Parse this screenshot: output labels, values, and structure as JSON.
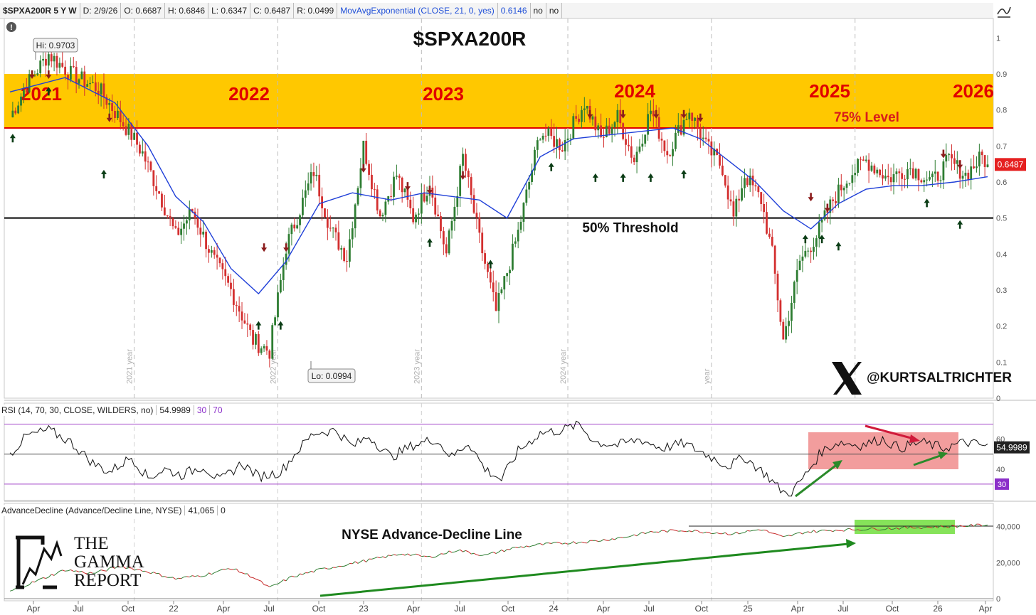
{
  "header": {
    "symbol_label": "$SPXA200R 5 Y W",
    "date": "D: 2/9/26",
    "open": "O: 0.6687",
    "high": "H: 0.6846",
    "low": "L: 0.6347",
    "close": "C: 0.6487",
    "range": "R: 0.0499",
    "study": "MovAvgExponential (CLOSE, 21, 0, yes)",
    "study_value": "0.6146",
    "flag1": "no",
    "flag2": "no"
  },
  "colors": {
    "up": "#2e7d32",
    "down": "#d32f2f",
    "band": "#ffc800",
    "ema": "#1f3fd8",
    "rsi_box": "#f08c8c",
    "ad_box": "#86e35a",
    "threshold75": "#e00000"
  },
  "chart_data": [
    {
      "type": "candlestick",
      "title": "$SPXA200R",
      "ylim": [
        0,
        1.05
      ],
      "yticks": [
        "1",
        "0.9",
        "0.8",
        "0.7",
        "0.6",
        "0.5",
        "0.4",
        "0.3",
        "0.2",
        "0.1",
        "0"
      ],
      "xticks": [
        "Apr",
        "Jul",
        "Oct",
        "22",
        "Apr",
        "Jul",
        "Oct",
        "23",
        "Apr",
        "Jul",
        "Oct",
        "24",
        "Apr",
        "Jul",
        "Oct",
        "25",
        "Apr",
        "Jul",
        "Oct",
        "26",
        "Apr"
      ],
      "year_labels": [
        "2021",
        "2022",
        "2023",
        "2024",
        "2025",
        "2026"
      ],
      "year_separator_labels": [
        "2021 year",
        "2022 year",
        "2023 year",
        "2024 year",
        "year"
      ],
      "band": {
        "from": 0.75,
        "to": 0.9,
        "label": "75% Level"
      },
      "threshold": {
        "value": 0.5,
        "label": "50% Threshold"
      },
      "hi_label": "Hi: 0.9703",
      "lo_label": "Lo: 0.0994",
      "last_value": "0.6487",
      "watermark": "@KURTSALTRICHTER",
      "x_date_range": [
        "2021-01-04",
        "2026-02-09"
      ],
      "series": [
        {
          "name": "MovAvgExponential (CLOSE, 21, 0, yes)",
          "closes": [
            [
              0,
              0.78
            ],
            [
              6,
              0.87
            ],
            [
              14,
              0.955
            ],
            [
              22,
              0.9
            ],
            [
              32,
              0.86
            ],
            [
              44,
              0.73
            ],
            [
              48,
              0.68
            ],
            [
              54,
              0.57
            ],
            [
              60,
              0.45
            ],
            [
              66,
              0.52
            ],
            [
              74,
              0.38
            ],
            [
              80,
              0.3
            ],
            [
              88,
              0.16
            ],
            [
              94,
              0.13
            ],
            [
              100,
              0.42
            ],
            [
              110,
              0.63
            ],
            [
              116,
              0.47
            ],
            [
              122,
              0.39
            ],
            [
              128,
              0.7
            ],
            [
              134,
              0.51
            ],
            [
              140,
              0.62
            ],
            [
              146,
              0.5
            ],
            [
              152,
              0.6
            ],
            [
              158,
              0.4
            ],
            [
              164,
              0.67
            ],
            [
              170,
              0.44
            ],
            [
              176,
              0.24
            ],
            [
              184,
              0.46
            ],
            [
              192,
              0.74
            ],
            [
              200,
              0.7
            ],
            [
              208,
              0.82
            ],
            [
              214,
              0.72
            ],
            [
              220,
              0.78
            ],
            [
              226,
              0.66
            ],
            [
              232,
              0.8
            ],
            [
              238,
              0.68
            ],
            [
              246,
              0.8
            ],
            [
              252,
              0.7
            ],
            [
              258,
              0.64
            ],
            [
              262,
              0.5
            ],
            [
              266,
              0.62
            ],
            [
              272,
              0.55
            ],
            [
              276,
              0.4
            ],
            [
              280,
              0.16
            ],
            [
              286,
              0.38
            ],
            [
              292,
              0.45
            ],
            [
              298,
              0.55
            ],
            [
              304,
              0.62
            ],
            [
              310,
              0.66
            ],
            [
              318,
              0.61
            ],
            [
              326,
              0.64
            ],
            [
              334,
              0.6
            ],
            [
              340,
              0.66
            ],
            [
              346,
              0.62
            ],
            [
              352,
              0.67
            ],
            [
              354,
              0.6487
            ]
          ],
          "ema": [
            [
              0,
              0.85
            ],
            [
              20,
              0.89
            ],
            [
              38,
              0.82
            ],
            [
              50,
              0.7
            ],
            [
              60,
              0.56
            ],
            [
              70,
              0.49
            ],
            [
              80,
              0.36
            ],
            [
              90,
              0.29
            ],
            [
              100,
              0.38
            ],
            [
              112,
              0.54
            ],
            [
              124,
              0.57
            ],
            [
              138,
              0.55
            ],
            [
              150,
              0.57
            ],
            [
              160,
              0.56
            ],
            [
              170,
              0.55
            ],
            [
              180,
              0.5
            ],
            [
              192,
              0.67
            ],
            [
              204,
              0.72
            ],
            [
              216,
              0.73
            ],
            [
              228,
              0.74
            ],
            [
              240,
              0.75
            ],
            [
              250,
              0.72
            ],
            [
              260,
              0.66
            ],
            [
              270,
              0.6
            ],
            [
              280,
              0.52
            ],
            [
              290,
              0.47
            ],
            [
              300,
              0.54
            ],
            [
              310,
              0.58
            ],
            [
              320,
              0.59
            ],
            [
              330,
              0.59
            ],
            [
              342,
              0.6
            ],
            [
              354,
              0.6146
            ]
          ]
        }
      ],
      "up_arrows": [
        [
          1,
          0.72
        ],
        [
          14,
          0.85
        ],
        [
          34,
          0.62
        ],
        [
          90,
          0.2
        ],
        [
          98,
          0.2
        ],
        [
          152,
          0.43
        ],
        [
          174,
          0.37
        ],
        [
          196,
          0.64
        ],
        [
          212,
          0.61
        ],
        [
          222,
          0.61
        ],
        [
          232,
          0.61
        ],
        [
          244,
          0.62
        ],
        [
          288,
          0.44
        ],
        [
          294,
          0.44
        ],
        [
          300,
          0.42
        ],
        [
          332,
          0.54
        ],
        [
          344,
          0.48
        ]
      ],
      "down_arrows": [
        [
          8,
          0.9
        ],
        [
          14,
          0.9
        ],
        [
          36,
          0.78
        ],
        [
          92,
          0.42
        ],
        [
          100,
          0.42
        ],
        [
          128,
          0.64
        ],
        [
          144,
          0.59
        ],
        [
          152,
          0.58
        ],
        [
          164,
          0.62
        ],
        [
          210,
          0.79
        ],
        [
          222,
          0.79
        ],
        [
          234,
          0.79
        ],
        [
          244,
          0.79
        ],
        [
          250,
          0.78
        ],
        [
          290,
          0.56
        ],
        [
          296,
          0.53
        ],
        [
          338,
          0.68
        ],
        [
          344,
          0.65
        ]
      ]
    },
    {
      "type": "line",
      "title": "RSI (14, 70, 30, CLOSE, WILDERS, no)",
      "title_value": "54.9989",
      "level_labels": [
        "30",
        "70"
      ],
      "ylim": [
        20,
        75
      ],
      "yticks": [
        "60",
        "40"
      ],
      "levels": [
        30,
        50,
        70
      ],
      "last_value": "54.9989",
      "level30_label": "30",
      "points": [
        [
          0,
          50
        ],
        [
          6,
          62
        ],
        [
          14,
          66
        ],
        [
          22,
          58
        ],
        [
          30,
          44
        ],
        [
          36,
          38
        ],
        [
          44,
          48
        ],
        [
          50,
          34
        ],
        [
          56,
          40
        ],
        [
          62,
          36
        ],
        [
          70,
          42
        ],
        [
          76,
          32
        ],
        [
          84,
          44
        ],
        [
          90,
          35
        ],
        [
          98,
          38
        ],
        [
          104,
          52
        ],
        [
          110,
          64
        ],
        [
          118,
          66
        ],
        [
          124,
          55
        ],
        [
          130,
          62
        ],
        [
          138,
          48
        ],
        [
          146,
          56
        ],
        [
          154,
          60
        ],
        [
          160,
          48
        ],
        [
          166,
          58
        ],
        [
          172,
          40
        ],
        [
          178,
          33
        ],
        [
          184,
          52
        ],
        [
          192,
          64
        ],
        [
          200,
          66
        ],
        [
          206,
          70
        ],
        [
          212,
          58
        ],
        [
          220,
          56
        ],
        [
          228,
          60
        ],
        [
          236,
          54
        ],
        [
          244,
          57
        ],
        [
          252,
          50
        ],
        [
          260,
          42
        ],
        [
          266,
          48
        ],
        [
          274,
          36
        ],
        [
          278,
          28
        ],
        [
          282,
          22
        ],
        [
          288,
          36
        ],
        [
          294,
          52
        ],
        [
          300,
          58
        ],
        [
          308,
          56
        ],
        [
          316,
          60
        ],
        [
          322,
          54
        ],
        [
          330,
          58
        ],
        [
          338,
          54
        ],
        [
          346,
          58
        ],
        [
          354,
          55
        ]
      ]
    },
    {
      "type": "line",
      "title": "AdvanceDecline (Advance/Decline Line, NYSE)",
      "title_value": "41,065",
      "title_value2": "0",
      "ylim": [
        0,
        45000
      ],
      "yticks": [
        "40,000",
        "20,000",
        "0"
      ],
      "annotation": "NYSE Advance-Decline Line",
      "points": [
        [
          0,
          4000
        ],
        [
          10,
          10000
        ],
        [
          20,
          16000
        ],
        [
          30,
          14000
        ],
        [
          40,
          18000
        ],
        [
          50,
          15000
        ],
        [
          60,
          11000
        ],
        [
          70,
          13000
        ],
        [
          80,
          17000
        ],
        [
          88,
          12000
        ],
        [
          94,
          6000
        ],
        [
          102,
          12000
        ],
        [
          112,
          16000
        ],
        [
          122,
          19000
        ],
        [
          132,
          22000
        ],
        [
          142,
          25000
        ],
        [
          152,
          23000
        ],
        [
          162,
          27000
        ],
        [
          172,
          24000
        ],
        [
          182,
          28000
        ],
        [
          192,
          30000
        ],
        [
          202,
          31000
        ],
        [
          212,
          32000
        ],
        [
          222,
          34000
        ],
        [
          232,
          37000
        ],
        [
          244,
          38000
        ],
        [
          252,
          37000
        ],
        [
          262,
          36000
        ],
        [
          272,
          38500
        ],
        [
          280,
          34000
        ],
        [
          288,
          37000
        ],
        [
          298,
          38000
        ],
        [
          308,
          38500
        ],
        [
          318,
          39000
        ],
        [
          328,
          39500
        ],
        [
          338,
          40000
        ],
        [
          348,
          40500
        ],
        [
          354,
          41065
        ]
      ]
    }
  ],
  "logo": {
    "line1": "THE",
    "line2": "GAMMA",
    "line3": "REPORT"
  }
}
